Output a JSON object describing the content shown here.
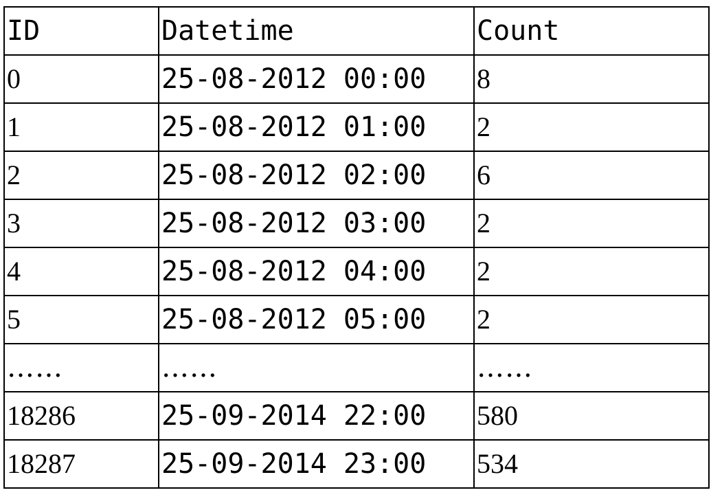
{
  "table": {
    "headers": [
      "ID",
      "Datetime",
      "Count"
    ],
    "rows": [
      [
        "0",
        "25-08-2012 00:00",
        "8"
      ],
      [
        "1",
        "25-08-2012 01:00",
        "2"
      ],
      [
        "2",
        "25-08-2012 02:00",
        "6"
      ],
      [
        "3",
        "25-08-2012 03:00",
        "2"
      ],
      [
        "4",
        "25-08-2012 04:00",
        "2"
      ],
      [
        "5",
        "25-08-2012 05:00",
        "2"
      ],
      [
        "……",
        "……",
        "……"
      ],
      [
        "18286",
        "25-09-2014 22:00",
        "580"
      ],
      [
        "18287",
        "25-09-2014 23:00",
        "534"
      ]
    ]
  }
}
